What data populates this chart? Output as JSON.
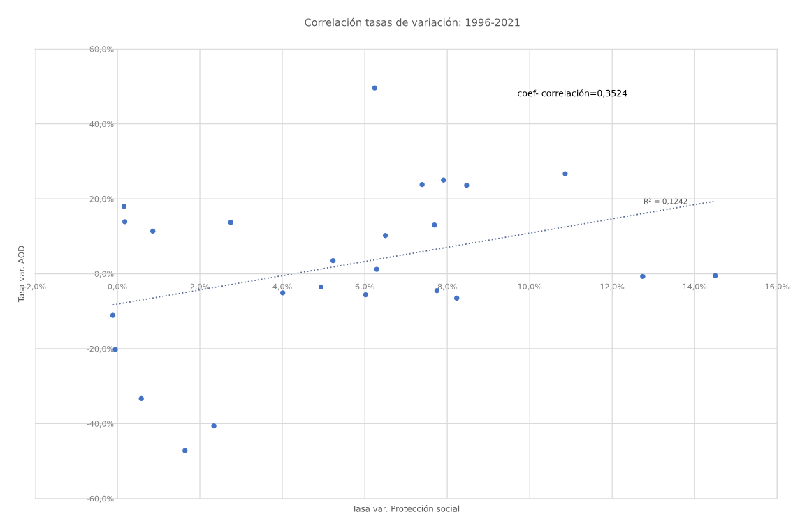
{
  "chart_data": {
    "type": "scatter",
    "title": "Correlación tasas de variación: 1996-2021",
    "xlabel": "Tasa var. Protección social",
    "ylabel": "Tasa var. AOD",
    "annotations": [
      "coef- correlación=0,3524",
      "R² = 0,1242"
    ],
    "series": [
      {
        "color": "#4472c4",
        "marker": "circle",
        "x": [
          0.16,
          0.18,
          0.86,
          2.75,
          -0.11,
          -0.05,
          0.58,
          1.64,
          2.34,
          4.01,
          6.24,
          7.39,
          7.91,
          8.47,
          7.69,
          6.5,
          5.23,
          6.29,
          4.94,
          6.02,
          7.75,
          8.23,
          10.86,
          12.74,
          14.5
        ],
        "values": [
          18.0,
          13.9,
          11.4,
          13.7,
          -11.1,
          -20.2,
          -33.3,
          -47.2,
          -40.6,
          -5.1,
          49.6,
          23.8,
          25.0,
          23.6,
          13.0,
          10.2,
          3.5,
          1.2,
          -3.5,
          -5.6,
          -4.5,
          -6.5,
          26.7,
          -0.7,
          -0.5
        ]
      },
      {
        "type": "line",
        "color": "#5b6f94",
        "marker": "none",
        "line_style": "dotted",
        "x": [
          -0.11,
          14.5
        ],
        "values": [
          -8.3,
          19.4
        ]
      }
    ],
    "xlim": [
      -2,
      16
    ],
    "ylim": [
      -60,
      60
    ],
    "xticks": [
      {
        "value": -2,
        "label": "-2,0%"
      },
      {
        "value": 0,
        "label": "0,0%"
      },
      {
        "value": 2,
        "label": "2,0%"
      },
      {
        "value": 4,
        "label": "4,0%"
      },
      {
        "value": 6,
        "label": "6,0%"
      },
      {
        "value": 8,
        "label": "8,0%"
      },
      {
        "value": 10,
        "label": "10,0%"
      },
      {
        "value": 12,
        "label": "12,0%"
      },
      {
        "value": 14,
        "label": "14,0%"
      },
      {
        "value": 16,
        "label": "16,0%"
      }
    ],
    "yticks": [
      {
        "value": -60,
        "label": "-60,0%"
      },
      {
        "value": -40,
        "label": "-40,0%"
      },
      {
        "value": -20,
        "label": "-20,0%"
      },
      {
        "value": 0,
        "label": "0,0%"
      },
      {
        "value": 20,
        "label": "20,0%"
      },
      {
        "value": 40,
        "label": "40,0%"
      },
      {
        "value": 60,
        "label": "60,0%"
      }
    ],
    "grid": true
  }
}
